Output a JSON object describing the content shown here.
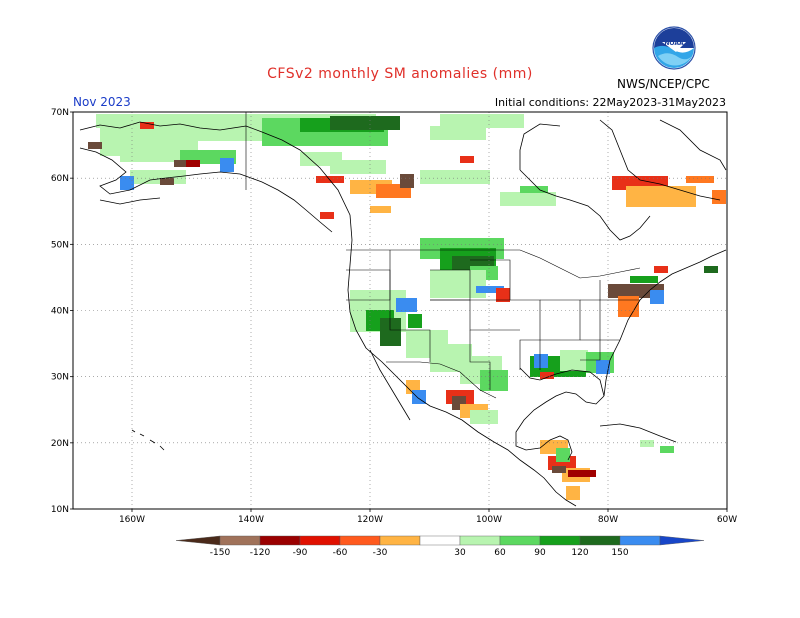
{
  "header": {
    "title": "CFSv2 monthly SM anomalies (mm)",
    "month": "Nov 2023",
    "initial_conditions": "Initial conditions: 22May2023-31May2023",
    "agency": "NWS/NCEP/CPC",
    "logo_text": "NOAA"
  },
  "axes": {
    "lat_labels": [
      "70N",
      "60N",
      "50N",
      "40N",
      "30N",
      "20N",
      "10N"
    ],
    "lon_labels": [
      "160W",
      "140W",
      "120W",
      "100W",
      "80W",
      "60W"
    ]
  },
  "colorbar": {
    "labels": [
      "-150",
      "-120",
      "-90",
      "-60",
      "-30",
      "30",
      "60",
      "90",
      "120",
      "150"
    ],
    "colors": [
      "#4a2a1a",
      "#a0725a",
      "#9a0000",
      "#e01000",
      "#ff5a1e",
      "#ffb444",
      "#ffffff",
      "#b8f4b0",
      "#5cd860",
      "#16a01c",
      "#1e6a1e",
      "#3a8cf0",
      "#1846c8"
    ]
  },
  "anomaly_colors": {
    "dry_extreme": "#6a4a3a",
    "dry_strong": "#a00000",
    "dry_mod": "#e83018",
    "dry_weak": "#ff7820",
    "dry_slight": "#ffb444",
    "wet_slight": "#b8f4b0",
    "wet_weak": "#5cd860",
    "wet_mod": "#16a01c",
    "wet_strong": "#1e6a1e",
    "wet_extreme": "#3a8cf0"
  }
}
